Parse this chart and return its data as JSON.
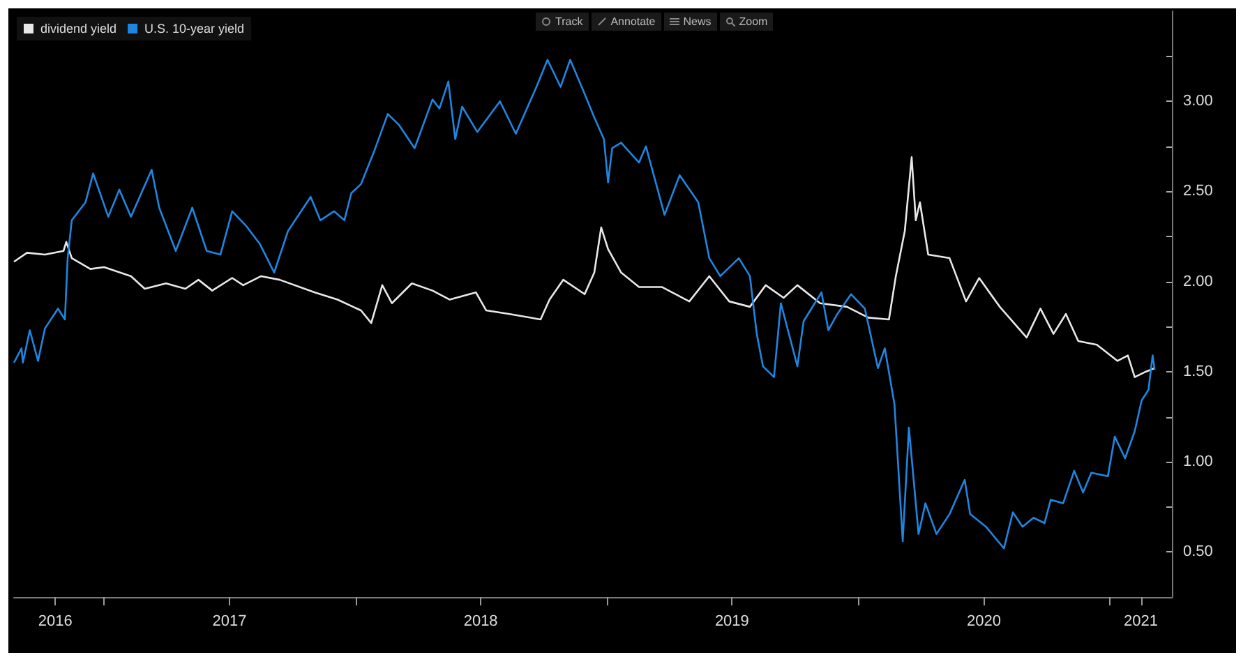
{
  "chart_data": {
    "type": "line",
    "annotations": [
      "Track",
      "Annotate",
      "News",
      "Zoom"
    ],
    "xlim": [
      "2016-08-23",
      "2021-04-01"
    ],
    "xticks": [
      {
        "value": "2016-10-22",
        "label": "2016"
      },
      {
        "value": "2017-01-01",
        "label": null
      },
      {
        "value": "2017-07-02",
        "label": "2017"
      },
      {
        "value": "2018-01-01",
        "label": null
      },
      {
        "value": "2018-07-02",
        "label": "2018"
      },
      {
        "value": "2019-01-01",
        "label": null
      },
      {
        "value": "2019-07-02",
        "label": "2019"
      },
      {
        "value": "2020-01-01",
        "label": null
      },
      {
        "value": "2020-07-02",
        "label": "2020"
      },
      {
        "value": "2021-01-01",
        "label": null
      },
      {
        "value": "2021-02-15",
        "label": "2021"
      }
    ],
    "ylim": [
      0.25,
      3.5
    ],
    "yticks": [
      {
        "value": 0.5,
        "label": "0.50"
      },
      {
        "value": 0.75,
        "label": null
      },
      {
        "value": 1,
        "label": "1.00"
      },
      {
        "value": 1.25,
        "label": null
      },
      {
        "value": 1.5,
        "label": "1.50"
      },
      {
        "value": 1.75,
        "label": null
      },
      {
        "value": 2,
        "label": "2.00"
      },
      {
        "value": 2.25,
        "label": null
      },
      {
        "value": 2.5,
        "label": "2.50"
      },
      {
        "value": 2.75,
        "label": null
      },
      {
        "value": 3,
        "label": "3.00"
      },
      {
        "value": 3.25,
        "label": null
      }
    ],
    "grid": false,
    "legend": "top left",
    "series": [
      {
        "name": "dividend yield",
        "color": "#e8e8e8",
        "x": [
          "2016-08-23",
          "2016-09-11",
          "2016-10-07",
          "2016-11-03",
          "2016-11-07",
          "2016-11-15",
          "2016-12-12",
          "2017-01-01",
          "2017-02-09",
          "2017-03-01",
          "2017-04-01",
          "2017-04-29",
          "2017-05-18",
          "2017-06-07",
          "2017-07-06",
          "2017-07-22",
          "2017-08-17",
          "2017-09-13",
          "2017-11-03",
          "2017-12-06",
          "2018-01-09",
          "2018-01-24",
          "2018-02-09",
          "2018-02-23",
          "2018-03-24",
          "2018-04-23",
          "2018-05-18",
          "2018-06-25",
          "2018-07-10",
          "2018-08-13",
          "2018-09-27",
          "2018-10-10",
          "2018-10-30",
          "2018-11-30",
          "2018-12-14",
          "2018-12-24",
          "2019-01-03",
          "2019-01-22",
          "2019-02-17",
          "2019-03-22",
          "2019-05-01",
          "2019-05-30",
          "2019-06-28",
          "2019-07-28",
          "2019-08-20",
          "2019-09-15",
          "2019-10-05",
          "2019-11-07",
          "2019-12-16",
          "2020-01-16",
          "2020-02-15",
          "2020-02-25",
          "2020-03-09",
          "2020-03-19",
          "2020-03-25",
          "2020-03-31",
          "2020-04-12",
          "2020-05-13",
          "2020-06-06",
          "2020-06-25",
          "2020-07-25",
          "2020-09-02",
          "2020-09-22",
          "2020-10-11",
          "2020-10-29",
          "2020-11-16",
          "2020-12-13",
          "2021-01-12",
          "2021-01-27",
          "2021-02-06",
          "2021-02-22",
          "2021-03-07"
        ],
        "values": [
          2.11,
          2.16,
          2.15,
          2.17,
          2.22,
          2.13,
          2.07,
          2.08,
          2.03,
          1.96,
          1.99,
          1.96,
          2.01,
          1.95,
          2.02,
          1.98,
          2.03,
          2.01,
          1.94,
          1.9,
          1.84,
          1.77,
          1.98,
          1.88,
          1.99,
          1.95,
          1.9,
          1.94,
          1.84,
          1.82,
          1.79,
          1.9,
          2.01,
          1.93,
          2.05,
          2.3,
          2.18,
          2.05,
          1.97,
          1.97,
          1.89,
          2.03,
          1.89,
          1.86,
          1.98,
          1.91,
          1.98,
          1.88,
          1.86,
          1.8,
          1.79,
          2.03,
          2.28,
          2.69,
          2.34,
          2.44,
          2.15,
          2.13,
          1.89,
          2.02,
          1.86,
          1.69,
          1.85,
          1.71,
          1.82,
          1.67,
          1.65,
          1.56,
          1.59,
          1.47,
          1.5,
          1.52
        ]
      },
      {
        "name": "U.S. 10-year yield",
        "color": "#1f86e0",
        "x": [
          "2016-08-23",
          "2016-09-03",
          "2016-09-05",
          "2016-09-15",
          "2016-09-27",
          "2016-10-07",
          "2016-10-26",
          "2016-11-05",
          "2016-11-09",
          "2016-11-15",
          "2016-12-05",
          "2016-12-16",
          "2017-01-07",
          "2017-01-23",
          "2017-02-09",
          "2017-03-11",
          "2017-03-22",
          "2017-04-15",
          "2017-05-09",
          "2017-05-30",
          "2017-06-19",
          "2017-07-06",
          "2017-07-26",
          "2017-08-15",
          "2017-09-05",
          "2017-09-25",
          "2017-10-28",
          "2017-11-11",
          "2017-12-01",
          "2017-12-16",
          "2017-12-26",
          "2018-01-09",
          "2018-01-28",
          "2018-02-17",
          "2018-03-05",
          "2018-03-28",
          "2018-04-23",
          "2018-05-03",
          "2018-05-16",
          "2018-05-26",
          "2018-06-05",
          "2018-06-27",
          "2018-07-30",
          "2018-08-22",
          "2018-09-21",
          "2018-10-07",
          "2018-10-26",
          "2018-11-09",
          "2018-11-29",
          "2018-12-14",
          "2018-12-28",
          "2019-01-03",
          "2019-01-09",
          "2019-01-22",
          "2019-02-17",
          "2019-02-27",
          "2019-03-26",
          "2019-04-17",
          "2019-05-14",
          "2019-05-30",
          "2019-06-15",
          "2019-07-12",
          "2019-07-28",
          "2019-08-07",
          "2019-08-16",
          "2019-09-01",
          "2019-09-11",
          "2019-10-05",
          "2019-10-14",
          "2019-11-09",
          "2019-11-19",
          "2019-12-02",
          "2019-12-22",
          "2020-01-11",
          "2020-01-30",
          "2020-02-09",
          "2020-02-23",
          "2020-03-06",
          "2020-03-15",
          "2020-03-29",
          "2020-04-08",
          "2020-04-24",
          "2020-05-13",
          "2020-06-04",
          "2020-06-12",
          "2020-07-05",
          "2020-07-31",
          "2020-08-13",
          "2020-08-27",
          "2020-09-12",
          "2020-09-28",
          "2020-10-07",
          "2020-10-25",
          "2020-11-10",
          "2020-11-23",
          "2020-12-05",
          "2020-12-29",
          "2021-01-08",
          "2021-01-23",
          "2021-02-06",
          "2021-02-16",
          "2021-02-26",
          "2021-03-04",
          "2021-03-07"
        ],
        "values": [
          1.55,
          1.63,
          1.55,
          1.73,
          1.56,
          1.74,
          1.85,
          1.79,
          2.13,
          2.34,
          2.44,
          2.6,
          2.36,
          2.51,
          2.36,
          2.62,
          2.41,
          2.17,
          2.41,
          2.17,
          2.15,
          2.39,
          2.31,
          2.21,
          2.05,
          2.28,
          2.47,
          2.34,
          2.39,
          2.34,
          2.49,
          2.54,
          2.72,
          2.93,
          2.87,
          2.74,
          3.01,
          2.96,
          3.11,
          2.79,
          2.97,
          2.83,
          3.0,
          2.82,
          3.08,
          3.23,
          3.08,
          3.23,
          3.05,
          2.91,
          2.79,
          2.55,
          2.74,
          2.77,
          2.66,
          2.75,
          2.37,
          2.59,
          2.44,
          2.13,
          2.03,
          2.13,
          2.03,
          1.71,
          1.53,
          1.47,
          1.88,
          1.53,
          1.78,
          1.94,
          1.73,
          1.82,
          1.93,
          1.85,
          1.52,
          1.63,
          1.32,
          0.56,
          1.19,
          0.6,
          0.77,
          0.6,
          0.71,
          0.9,
          0.71,
          0.64,
          0.52,
          0.72,
          0.64,
          0.69,
          0.66,
          0.79,
          0.77,
          0.95,
          0.83,
          0.94,
          0.92,
          1.14,
          1.02,
          1.17,
          1.34,
          1.4,
          1.59,
          1.51
        ]
      }
    ]
  }
}
